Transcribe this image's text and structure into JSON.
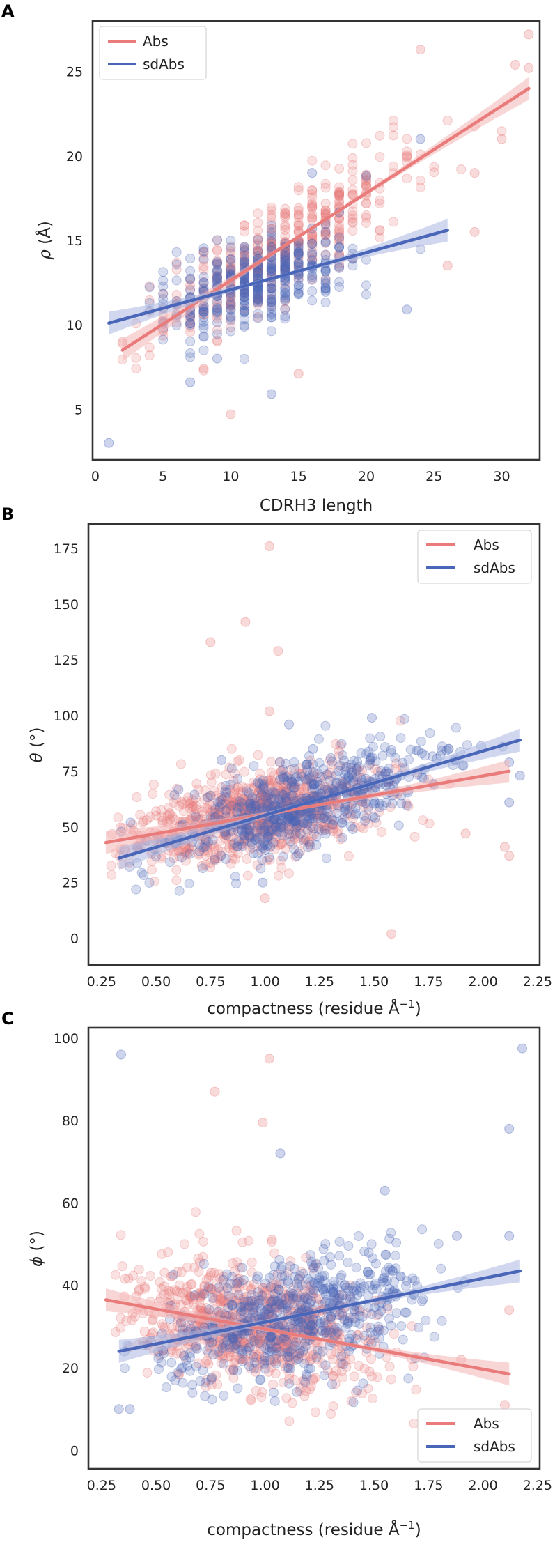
{
  "colors": {
    "abs": "#e97b7b",
    "sdabs": "#4a66b8",
    "abs_band": "#f4b5b5",
    "sdabs_band": "#a9b6e0"
  },
  "chart_data": [
    {
      "panel": "A",
      "type": "scatter",
      "title": "",
      "xlabel": "CDRH3 length",
      "ylabel_symbol": "ρ",
      "ylabel_unit": "(Å)",
      "xlim": [
        -0.2,
        32.8
      ],
      "ylim": [
        2.0,
        28.0
      ],
      "xticks": [
        0,
        5,
        10,
        15,
        20,
        25,
        30
      ],
      "yticks": [
        5,
        10,
        15,
        20,
        25
      ],
      "legend_loc": "top-left",
      "series": [
        {
          "name": "Abs",
          "key": "abs",
          "fit": [
            [
              2,
              8.5
            ],
            [
              32,
              24.0
            ]
          ],
          "cloud": {
            "x_range": [
              2,
              32
            ],
            "spread": 1.4,
            "count": 420,
            "integer_x": true,
            "x_peak": 14
          },
          "outliers": [
            [
              8,
              7.4
            ],
            [
              10,
              4.7
            ],
            [
              15,
              7.1
            ],
            [
              24,
              26.3
            ],
            [
              32,
              27.2
            ],
            [
              31,
              25.4
            ],
            [
              32,
              25.2
            ],
            [
              28,
              19.0
            ],
            [
              26,
              13.5
            ],
            [
              28,
              15.5
            ],
            [
              30,
              21.0
            ]
          ]
        },
        {
          "name": "sdAbs",
          "key": "sdabs",
          "fit": [
            [
              1,
              10.1
            ],
            [
              26,
              15.6
            ]
          ],
          "cloud": {
            "x_range": [
              3,
              26
            ],
            "spread": 1.3,
            "count": 380,
            "integer_x": true,
            "x_peak": 12
          },
          "outliers": [
            [
              1,
              3.0
            ],
            [
              7,
              6.6
            ],
            [
              9,
              8.0
            ],
            [
              13,
              5.9
            ],
            [
              23,
              10.9
            ],
            [
              20,
              18.8
            ],
            [
              24,
              21.0
            ],
            [
              16,
              19.0
            ]
          ]
        }
      ]
    },
    {
      "panel": "B",
      "type": "scatter",
      "title": "",
      "xlabel": "compactness (residue Å",
      "xlabel_sup": "−1",
      "xlabel_end": ")",
      "ylabel_symbol": "θ",
      "ylabel_unit": "(°)",
      "xlim": [
        0.19,
        2.26
      ],
      "ylim": [
        -12,
        186
      ],
      "xticks": [
        0.25,
        0.5,
        0.75,
        1.0,
        1.25,
        1.5,
        1.75,
        2.0,
        2.25
      ],
      "xtick_labels": [
        "0.25",
        "0.50",
        "0.75",
        "1.00",
        "1.25",
        "1.50",
        "1.75",
        "2.00",
        "2.25"
      ],
      "yticks": [
        0,
        25,
        50,
        75,
        100,
        125,
        150,
        175
      ],
      "legend_loc": "top-right",
      "series": [
        {
          "name": "Abs",
          "key": "abs",
          "fit": [
            [
              0.27,
              43
            ],
            [
              2.12,
              75
            ]
          ],
          "cloud": {
            "x_range": [
              0.27,
              2.12
            ],
            "spread": 10,
            "count": 800,
            "x_peak": 0.95
          },
          "outliers": [
            [
              1.02,
              176
            ],
            [
              0.91,
              142
            ],
            [
              1.06,
              129
            ],
            [
              0.75,
              133
            ],
            [
              1.02,
              102
            ],
            [
              1.58,
              2
            ],
            [
              1.0,
              18
            ],
            [
              2.1,
              41
            ],
            [
              2.12,
              37
            ],
            [
              1.92,
              47
            ]
          ]
        },
        {
          "name": "sdAbs",
          "key": "sdabs",
          "fit": [
            [
              0.33,
              36
            ],
            [
              2.17,
              89
            ]
          ],
          "cloud": {
            "x_range": [
              0.33,
              2.17
            ],
            "spread": 9,
            "count": 600,
            "x_peak": 1.15
          },
          "outliers": [
            [
              1.11,
              96
            ],
            [
              1.49,
              99
            ],
            [
              2.17,
              73
            ],
            [
              2.12,
              79
            ],
            [
              2.12,
              61
            ],
            [
              0.99,
              25
            ],
            [
              0.8,
              80
            ],
            [
              1.22,
              85
            ]
          ]
        }
      ]
    },
    {
      "panel": "C",
      "type": "scatter",
      "title": "",
      "xlabel": "compactness (residue Å",
      "xlabel_sup": "−1",
      "xlabel_end": ")",
      "ylabel_symbol": "ϕ",
      "ylabel_unit": "(°)",
      "xlim": [
        0.19,
        2.26
      ],
      "ylim": [
        -4.5,
        102.5
      ],
      "xticks": [
        0.25,
        0.5,
        0.75,
        1.0,
        1.25,
        1.5,
        1.75,
        2.0,
        2.25
      ],
      "xtick_labels": [
        "0.25",
        "0.50",
        "0.75",
        "1.00",
        "1.25",
        "1.50",
        "1.75",
        "2.00",
        "2.25"
      ],
      "yticks": [
        0,
        20,
        40,
        60,
        80,
        100
      ],
      "legend_loc": "bottom-right",
      "series": [
        {
          "name": "Abs",
          "key": "abs",
          "fit": [
            [
              0.27,
              36.5
            ],
            [
              2.12,
              18.5
            ]
          ],
          "cloud": {
            "x_range": [
              0.27,
              2.12
            ],
            "spread": 7,
            "count": 800,
            "x_peak": 0.95
          },
          "outliers": [
            [
              1.02,
              95
            ],
            [
              0.99,
              79.5
            ],
            [
              0.77,
              87
            ],
            [
              2.12,
              34
            ],
            [
              2.1,
              11
            ],
            [
              1.9,
              22
            ]
          ]
        },
        {
          "name": "sdAbs",
          "key": "sdabs",
          "fit": [
            [
              0.33,
              24
            ],
            [
              2.17,
              43.5
            ]
          ],
          "cloud": {
            "x_range": [
              0.33,
              2.17
            ],
            "spread": 7,
            "count": 600,
            "x_peak": 1.15
          },
          "outliers": [
            [
              0.34,
              96
            ],
            [
              2.18,
              97.5
            ],
            [
              2.12,
              78
            ],
            [
              1.07,
              72
            ],
            [
              1.55,
              63
            ],
            [
              2.12,
              52
            ],
            [
              1.88,
              52
            ],
            [
              0.33,
              10
            ],
            [
              0.38,
              10
            ]
          ]
        }
      ]
    }
  ]
}
